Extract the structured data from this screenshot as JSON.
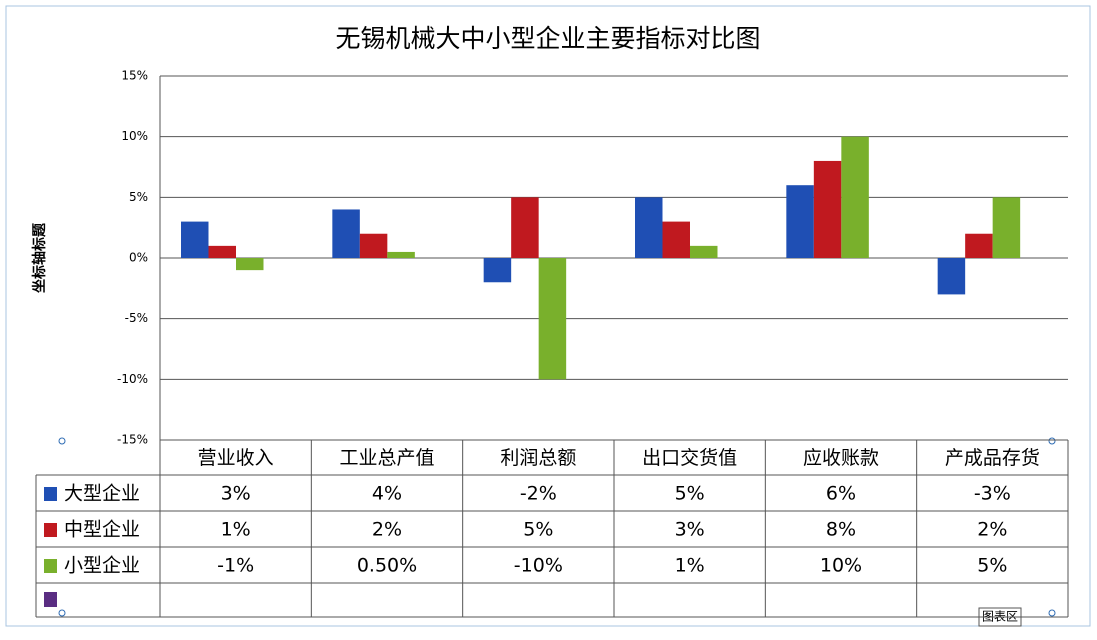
{
  "chart_data": {
    "type": "bar",
    "title": "无锡机械大中小型企业主要指标对比图",
    "y_label": "坐标轴标题",
    "categories": [
      "营业收入",
      "工业总产值",
      "利润总额",
      "出口交货值",
      "应收账款",
      "产成品存货"
    ],
    "series": [
      {
        "name": "大型企业",
        "color": "#1f4fb4",
        "values": [
          3,
          4,
          -2,
          5,
          6,
          -3
        ],
        "value_labels": [
          "3%",
          "4%",
          "-2%",
          "5%",
          "6%",
          "-3%"
        ]
      },
      {
        "name": "中型企业",
        "color": "#c0191f",
        "values": [
          1,
          2,
          5,
          3,
          8,
          2
        ],
        "value_labels": [
          "1%",
          "2%",
          "5%",
          "3%",
          "8%",
          "2%"
        ]
      },
      {
        "name": "小型企业",
        "color": "#79b02c",
        "values": [
          -1,
          0.5,
          -10,
          1,
          10,
          5
        ],
        "value_labels": [
          "-1%",
          "0.50%",
          "-10%",
          "1%",
          "10%",
          "5%"
        ]
      }
    ],
    "ylim": [
      -15,
      15
    ],
    "yticks": [
      {
        "value": -15,
        "label": "-15%"
      },
      {
        "value": -10,
        "label": "-10%"
      },
      {
        "value": -5,
        "label": "-5%"
      },
      {
        "value": 0,
        "label": "0%"
      },
      {
        "value": 5,
        "label": "5%"
      },
      {
        "value": 10,
        "label": "10%"
      },
      {
        "value": 15,
        "label": "15%"
      }
    ],
    "grid": true,
    "data_table": true,
    "tooltip": "图表区"
  }
}
